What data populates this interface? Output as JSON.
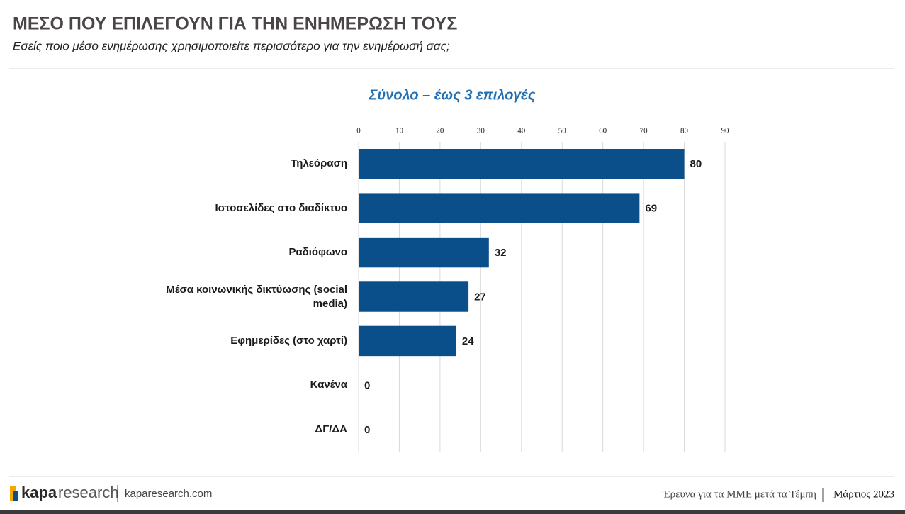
{
  "header": {
    "title": "ΜΕΣΟ ΠΟΥ ΕΠΙΛΕΓΟΥΝ ΓΙΑ ΤΗΝ ΕΝΗΜΕΡΩΣΗ ΤΟΥΣ",
    "subtitle": "Εσείς ποιο μέσο ενημέρωσης χρησιμοποιείτε περισσότερο για την ενημέρωσή σας;"
  },
  "chart_data": {
    "type": "bar",
    "orientation": "horizontal",
    "title": "Σύνολο – έως 3 επιλογές",
    "categories": [
      "Τηλεόραση",
      "Ιστοσελίδες στο διαδίκτυο",
      "Ραδιόφωνο",
      "Μέσα κοινωνικής δικτύωσης (social media)",
      "Εφημερίδες (στο χαρτί)",
      "Κανένα",
      "ΔΓ/ΔΑ"
    ],
    "values": [
      80,
      69,
      32,
      27,
      24,
      0,
      0
    ],
    "color": "#0b4f8a",
    "xlim": [
      0,
      90
    ],
    "xticks": [
      0,
      10,
      20,
      30,
      40,
      50,
      60,
      70,
      80,
      90
    ],
    "grid": true
  },
  "footer": {
    "logo_bold": "kapa",
    "logo_light": "research",
    "website": "kaparesearch.com",
    "survey": "Έρευνα για τα ΜΜΕ μετά τα Τέμπη",
    "date": "Μάρτιος 2023"
  }
}
